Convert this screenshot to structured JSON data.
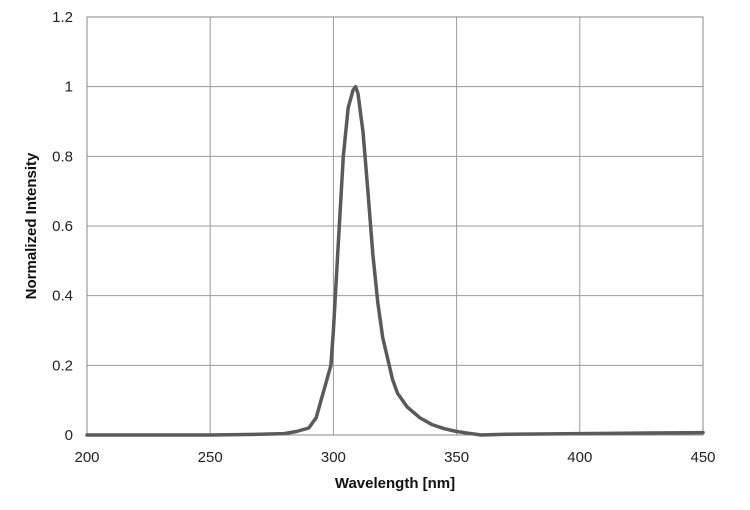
{
  "chart_data": {
    "type": "line",
    "title": "",
    "xlabel": "Wavelength [nm]",
    "ylabel": "Normalized Intensity",
    "xlim": [
      200,
      450
    ],
    "ylim": [
      0,
      1.2
    ],
    "xticks": [
      "200",
      "250",
      "300",
      "350",
      "400",
      "450"
    ],
    "yticks": [
      "0",
      "0.2",
      "0.4",
      "0.6",
      "0.8",
      "1",
      "1.2"
    ],
    "grid": true,
    "legend": "none",
    "series": [
      {
        "color": "#5a5a5a",
        "x": [
          200,
          250,
          270,
          280,
          285,
          290,
          293,
          295,
          297,
          299,
          300,
          302,
          304,
          306,
          308,
          309,
          310,
          312,
          314,
          316,
          318,
          320,
          322,
          324,
          326,
          330,
          335,
          340,
          345,
          350,
          355,
          360,
          370,
          400,
          450
        ],
        "y": [
          0.0,
          0.0,
          0.002,
          0.004,
          0.01,
          0.02,
          0.05,
          0.1,
          0.15,
          0.2,
          0.3,
          0.55,
          0.8,
          0.94,
          0.99,
          1.0,
          0.98,
          0.87,
          0.7,
          0.52,
          0.38,
          0.28,
          0.22,
          0.16,
          0.12,
          0.08,
          0.05,
          0.03,
          0.018,
          0.01,
          0.005,
          0.0,
          0.002,
          0.004,
          0.007
        ]
      }
    ]
  }
}
